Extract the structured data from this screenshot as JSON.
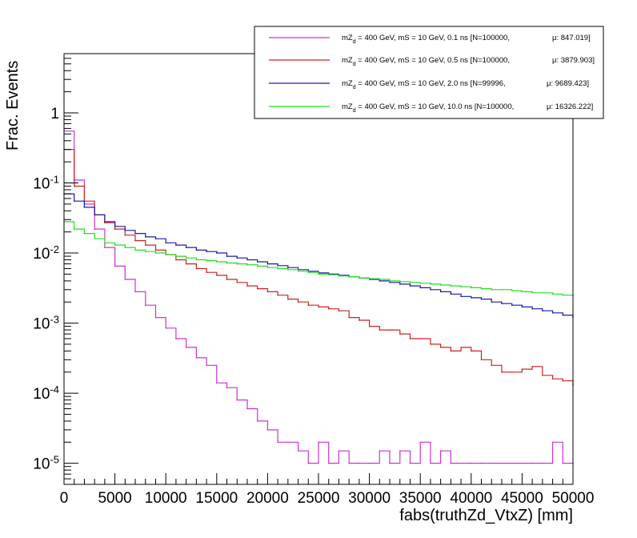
{
  "chart_data": {
    "type": "line",
    "xlabel": "fabs(truthZd_VtxZ) [mm]",
    "ylabel": "Frac. Events",
    "xlim": [
      0,
      50000
    ],
    "ylim": [
      5e-06,
      7
    ],
    "y_scale": "log",
    "grid": false,
    "legend_position": "top-right",
    "x_ticks": [
      0,
      5000,
      10000,
      15000,
      20000,
      25000,
      30000,
      35000,
      40000,
      45000,
      50000
    ],
    "y_ticks": [
      {
        "value": 1e-05,
        "base": "10",
        "exp": "-5"
      },
      {
        "value": 0.0001,
        "base": "10",
        "exp": "-4"
      },
      {
        "value": 0.001,
        "base": "10",
        "exp": "-3"
      },
      {
        "value": 0.01,
        "base": "10",
        "exp": "-2"
      },
      {
        "value": 0.1,
        "base": "10",
        "exp": "-1"
      },
      {
        "value": 1,
        "base": "1",
        "exp": ""
      }
    ],
    "series": [
      {
        "name": "mZ_d = 400 GeV, mS = 10 GeV, 0.1 ns [N=100000,",
        "name_parts": [
          "mZ",
          "d",
          " = 400 GeV, mS = 10 GeV, 0.1 ns [N=100000,"
        ],
        "stat_label": "μ: 847.019]",
        "color": "#cc33cc",
        "points": [
          [
            0,
            0.55
          ],
          [
            1000,
            0.11
          ],
          [
            2000,
            0.05
          ],
          [
            3000,
            0.022
          ],
          [
            4000,
            0.012
          ],
          [
            5000,
            0.0065
          ],
          [
            6000,
            0.0042
          ],
          [
            7000,
            0.0028
          ],
          [
            8000,
            0.0018
          ],
          [
            9000,
            0.0012
          ],
          [
            10000,
            0.00085
          ],
          [
            11000,
            0.0006
          ],
          [
            12000,
            0.00045
          ],
          [
            13000,
            0.00032
          ],
          [
            14000,
            0.00025
          ],
          [
            15000,
            0.00014
          ],
          [
            16000,
            0.00012
          ],
          [
            17000,
            8e-05
          ],
          [
            18000,
            6e-05
          ],
          [
            19000,
            4e-05
          ],
          [
            20000,
            3e-05
          ],
          [
            21000,
            2e-05
          ],
          [
            22000,
            2e-05
          ],
          [
            23000,
            1.5e-05
          ],
          [
            24000,
            1e-05
          ],
          [
            25000,
            2e-05
          ],
          [
            26000,
            1e-05
          ],
          [
            27000,
            1.5e-05
          ],
          [
            28000,
            1e-05
          ],
          [
            29000,
            1e-05
          ],
          [
            30000,
            1e-05
          ],
          [
            31000,
            1.5e-05
          ],
          [
            32000,
            1e-05
          ],
          [
            33000,
            1.5e-05
          ],
          [
            34000,
            1e-05
          ],
          [
            35000,
            2e-05
          ],
          [
            36000,
            1e-05
          ],
          [
            37000,
            1.5e-05
          ],
          [
            38000,
            1e-05
          ],
          [
            39000,
            1e-05
          ],
          [
            40000,
            1e-05
          ],
          [
            41000,
            1e-05
          ],
          [
            42000,
            1e-05
          ],
          [
            43000,
            1e-05
          ],
          [
            44000,
            1e-05
          ],
          [
            45000,
            1e-05
          ],
          [
            46000,
            1e-05
          ],
          [
            47000,
            1e-05
          ],
          [
            48000,
            2e-05
          ],
          [
            49000,
            1e-05
          ],
          [
            50000,
            1e-05
          ]
        ]
      },
      {
        "name": "mZ_d = 400 GeV, mS = 10 GeV, 0.5 ns [N=100000,",
        "name_parts": [
          "mZ",
          "d",
          " = 400 GeV, mS = 10 GeV, 0.5 ns [N=100000,"
        ],
        "stat_label": "μ: 3879.903]",
        "color": "#cc2222",
        "points": [
          [
            0,
            0.3
          ],
          [
            1000,
            0.09
          ],
          [
            2000,
            0.055
          ],
          [
            3000,
            0.035
          ],
          [
            4000,
            0.027
          ],
          [
            5000,
            0.022
          ],
          [
            6000,
            0.018
          ],
          [
            7000,
            0.015
          ],
          [
            8000,
            0.013
          ],
          [
            9000,
            0.011
          ],
          [
            10000,
            0.0095
          ],
          [
            11000,
            0.008
          ],
          [
            12000,
            0.007
          ],
          [
            13000,
            0.006
          ],
          [
            14000,
            0.0053
          ],
          [
            15000,
            0.0048
          ],
          [
            16000,
            0.0042
          ],
          [
            17000,
            0.0038
          ],
          [
            18000,
            0.0034
          ],
          [
            19000,
            0.0031
          ],
          [
            20000,
            0.0028
          ],
          [
            21000,
            0.0025
          ],
          [
            22000,
            0.0022
          ],
          [
            23000,
            0.002
          ],
          [
            24000,
            0.0018
          ],
          [
            25000,
            0.0017
          ],
          [
            26000,
            0.0016
          ],
          [
            27000,
            0.0015
          ],
          [
            28000,
            0.0012
          ],
          [
            29000,
            0.0011
          ],
          [
            30000,
            0.0009
          ],
          [
            31000,
            0.0008
          ],
          [
            32000,
            0.0008
          ],
          [
            33000,
            0.0007
          ],
          [
            34000,
            0.0006
          ],
          [
            35000,
            0.0006
          ],
          [
            36000,
            0.0005
          ],
          [
            37000,
            0.00045
          ],
          [
            38000,
            0.0004
          ],
          [
            39000,
            0.00045
          ],
          [
            40000,
            0.0004
          ],
          [
            41000,
            0.0003
          ],
          [
            42000,
            0.00025
          ],
          [
            43000,
            0.0002
          ],
          [
            44000,
            0.0002
          ],
          [
            45000,
            0.00022
          ],
          [
            46000,
            0.00024
          ],
          [
            47000,
            0.00018
          ],
          [
            48000,
            0.00016
          ],
          [
            49000,
            0.00015
          ],
          [
            50000,
            0.00013
          ]
        ]
      },
      {
        "name": "mZ_d = 400 GeV, mS = 10 GeV, 2.0 ns [N=99996,",
        "name_parts": [
          "mZ",
          "d",
          " = 400 GeV, mS = 10 GeV, 2.0 ns [N=99996,"
        ],
        "stat_label": "μ: 9689.423]",
        "color": "#1a1aaa",
        "points": [
          [
            0,
            0.07
          ],
          [
            1000,
            0.055
          ],
          [
            2000,
            0.045
          ],
          [
            3000,
            0.035
          ],
          [
            4000,
            0.028
          ],
          [
            5000,
            0.024
          ],
          [
            6000,
            0.021
          ],
          [
            7000,
            0.019
          ],
          [
            8000,
            0.017
          ],
          [
            9000,
            0.016
          ],
          [
            10000,
            0.014
          ],
          [
            11000,
            0.013
          ],
          [
            12000,
            0.012
          ],
          [
            13000,
            0.011
          ],
          [
            14000,
            0.0105
          ],
          [
            15000,
            0.01
          ],
          [
            16000,
            0.009
          ],
          [
            17000,
            0.0085
          ],
          [
            18000,
            0.008
          ],
          [
            19000,
            0.0075
          ],
          [
            20000,
            0.007
          ],
          [
            21000,
            0.0066
          ],
          [
            22000,
            0.0062
          ],
          [
            23000,
            0.0058
          ],
          [
            24000,
            0.0055
          ],
          [
            25000,
            0.0052
          ],
          [
            26000,
            0.005
          ],
          [
            27000,
            0.0048
          ],
          [
            28000,
            0.0046
          ],
          [
            29000,
            0.0044
          ],
          [
            30000,
            0.0042
          ],
          [
            31000,
            0.004
          ],
          [
            32000,
            0.0038
          ],
          [
            33000,
            0.0036
          ],
          [
            34000,
            0.0034
          ],
          [
            35000,
            0.0032
          ],
          [
            36000,
            0.003
          ],
          [
            37000,
            0.0028
          ],
          [
            38000,
            0.0026
          ],
          [
            39000,
            0.0024
          ],
          [
            40000,
            0.0023
          ],
          [
            41000,
            0.0022
          ],
          [
            42000,
            0.002
          ],
          [
            43000,
            0.0019
          ],
          [
            44000,
            0.0018
          ],
          [
            45000,
            0.0017
          ],
          [
            46000,
            0.0016
          ],
          [
            47000,
            0.0015
          ],
          [
            48000,
            0.0014
          ],
          [
            49000,
            0.0013
          ],
          [
            50000,
            0.0012
          ]
        ]
      },
      {
        "name": "mZ_d = 400 GeV, mS = 10 GeV, 10.0 ns [N=100000,",
        "name_parts": [
          "mZ",
          "d",
          " = 400 GeV, mS = 10 GeV, 10.0 ns [N=100000,"
        ],
        "stat_label": "μ: 16326.222]",
        "color": "#22dd22",
        "points": [
          [
            0,
            0.028
          ],
          [
            1000,
            0.022
          ],
          [
            2000,
            0.019
          ],
          [
            3000,
            0.016
          ],
          [
            4000,
            0.014
          ],
          [
            5000,
            0.013
          ],
          [
            6000,
            0.012
          ],
          [
            7000,
            0.011
          ],
          [
            8000,
            0.0105
          ],
          [
            9000,
            0.01
          ],
          [
            10000,
            0.0095
          ],
          [
            11000,
            0.009
          ],
          [
            12000,
            0.0085
          ],
          [
            13000,
            0.008
          ],
          [
            14000,
            0.0078
          ],
          [
            15000,
            0.0075
          ],
          [
            16000,
            0.0072
          ],
          [
            17000,
            0.007
          ],
          [
            18000,
            0.0068
          ],
          [
            19000,
            0.0065
          ],
          [
            20000,
            0.0062
          ],
          [
            21000,
            0.006
          ],
          [
            22000,
            0.0058
          ],
          [
            23000,
            0.0055
          ],
          [
            24000,
            0.0053
          ],
          [
            25000,
            0.005
          ],
          [
            26000,
            0.0049
          ],
          [
            27000,
            0.0047
          ],
          [
            28000,
            0.0046
          ],
          [
            29000,
            0.0044
          ],
          [
            30000,
            0.0043
          ],
          [
            31000,
            0.0042
          ],
          [
            32000,
            0.004
          ],
          [
            33000,
            0.0039
          ],
          [
            34000,
            0.0038
          ],
          [
            35000,
            0.0037
          ],
          [
            36000,
            0.0036
          ],
          [
            37000,
            0.0035
          ],
          [
            38000,
            0.0034
          ],
          [
            39000,
            0.0033
          ],
          [
            40000,
            0.0032
          ],
          [
            41000,
            0.0031
          ],
          [
            42000,
            0.003
          ],
          [
            43000,
            0.003
          ],
          [
            44000,
            0.0029
          ],
          [
            45000,
            0.0028
          ],
          [
            46000,
            0.0027
          ],
          [
            47000,
            0.0027
          ],
          [
            48000,
            0.0026
          ],
          [
            49000,
            0.0025
          ],
          [
            50000,
            0.0025
          ]
        ]
      }
    ]
  }
}
